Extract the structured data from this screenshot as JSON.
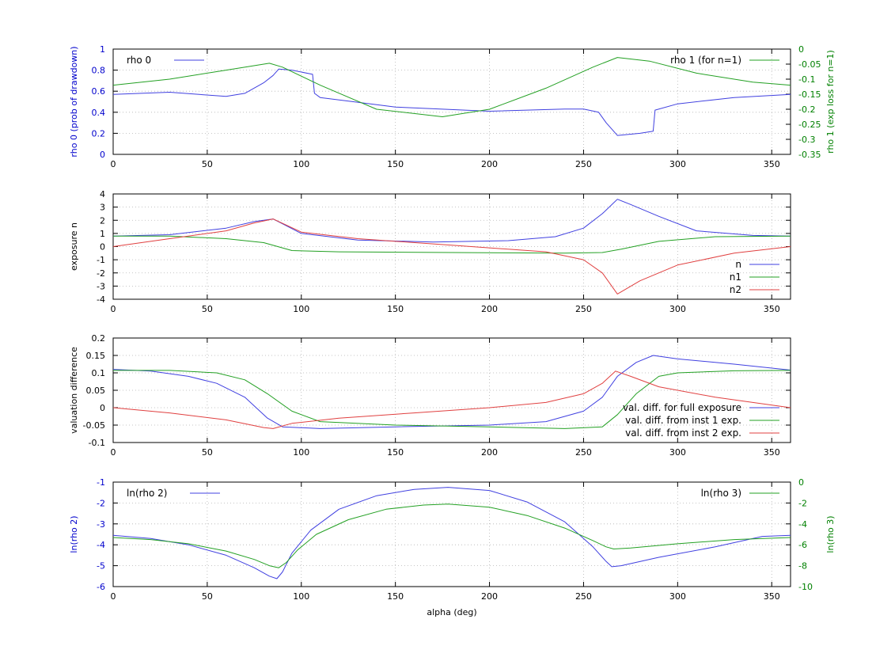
{
  "chart_data": [
    {
      "type": "line",
      "xlabel": "",
      "xlim": [
        0,
        360
      ],
      "xticks": [
        0,
        50,
        100,
        150,
        200,
        250,
        300,
        350
      ],
      "ylabel": "rho 0 (prob of drawdown)",
      "ylim": [
        0,
        1
      ],
      "yticks": [
        0,
        0.2,
        0.4,
        0.6,
        0.8,
        1
      ],
      "ytick_labels": [
        "0",
        "0.2",
        "0.4",
        "0.6",
        "0.8",
        "1"
      ],
      "y2label": "rho 1 (exp loss for n=1)",
      "y2lim": [
        -0.35,
        0
      ],
      "y2ticks": [
        0,
        -0.05,
        -0.1,
        -0.15,
        -0.2,
        -0.25,
        -0.3,
        -0.35
      ],
      "y2tick_labels": [
        "0",
        "-0.05",
        "-0.1",
        "-0.15",
        "-0.2",
        "-0.25",
        "-0.3",
        "-0.35"
      ],
      "ylabel_color": "#0000cc",
      "y2label_color": "#008000",
      "grid": true,
      "legend_position": "top-left and top-right",
      "series": [
        {
          "name": "rho 0",
          "axis": "left",
          "color": "#4040e0",
          "x": [
            0,
            30,
            60,
            70,
            80,
            85,
            88,
            95,
            106,
            107,
            110,
            150,
            200,
            240,
            250,
            258,
            262,
            268,
            280,
            287,
            288,
            300,
            330,
            360
          ],
          "y": [
            0.57,
            0.59,
            0.55,
            0.58,
            0.68,
            0.75,
            0.81,
            0.8,
            0.76,
            0.58,
            0.54,
            0.45,
            0.41,
            0.43,
            0.43,
            0.4,
            0.3,
            0.18,
            0.2,
            0.22,
            0.42,
            0.48,
            0.54,
            0.57
          ]
        },
        {
          "name": "rho 1 (for n=1)",
          "axis": "right",
          "color": "#23a023",
          "x": [
            0,
            30,
            60,
            83,
            90,
            110,
            140,
            175,
            200,
            230,
            255,
            268,
            285,
            310,
            340,
            360
          ],
          "y": [
            -0.12,
            -0.1,
            -0.07,
            -0.047,
            -0.06,
            -0.12,
            -0.2,
            -0.225,
            -0.2,
            -0.13,
            -0.06,
            -0.028,
            -0.04,
            -0.08,
            -0.11,
            -0.12
          ]
        }
      ]
    },
    {
      "type": "line",
      "xlabel": "",
      "xlim": [
        0,
        360
      ],
      "xticks": [
        0,
        50,
        100,
        150,
        200,
        250,
        300,
        350
      ],
      "ylabel": "exposure n",
      "ylim": [
        -4,
        4
      ],
      "yticks": [
        -4,
        -3,
        -2,
        -1,
        0,
        1,
        2,
        3,
        4
      ],
      "ytick_labels": [
        "-4",
        "-3",
        "-2",
        "-1",
        "0",
        "1",
        "2",
        "3",
        "4"
      ],
      "grid": true,
      "legend_position": "bottom-right",
      "series": [
        {
          "name": "n",
          "color": "#4040e0",
          "x": [
            0,
            30,
            60,
            75,
            85,
            100,
            130,
            170,
            210,
            235,
            250,
            260,
            268,
            275,
            290,
            310,
            340,
            360
          ],
          "y": [
            0.8,
            0.9,
            1.4,
            1.9,
            2.1,
            1.0,
            0.5,
            0.35,
            0.45,
            0.75,
            1.4,
            2.5,
            3.6,
            3.2,
            2.3,
            1.2,
            0.85,
            0.8
          ]
        },
        {
          "name": "n1",
          "color": "#23a023",
          "x": [
            0,
            30,
            60,
            80,
            95,
            120,
            180,
            240,
            260,
            270,
            290,
            320,
            360
          ],
          "y": [
            0.8,
            0.8,
            0.6,
            0.3,
            -0.3,
            -0.4,
            -0.45,
            -0.5,
            -0.45,
            -0.2,
            0.4,
            0.75,
            0.8
          ]
        },
        {
          "name": "n2",
          "color": "#e04040",
          "x": [
            0,
            30,
            60,
            75,
            85,
            100,
            130,
            180,
            230,
            250,
            260,
            268,
            280,
            300,
            330,
            360
          ],
          "y": [
            0,
            0.6,
            1.2,
            1.8,
            2.1,
            1.1,
            0.6,
            0.1,
            -0.4,
            -1.0,
            -2.0,
            -3.6,
            -2.6,
            -1.4,
            -0.5,
            0
          ]
        }
      ]
    },
    {
      "type": "line",
      "xlabel": "",
      "xlim": [
        0,
        360
      ],
      "xticks": [
        0,
        50,
        100,
        150,
        200,
        250,
        300,
        350
      ],
      "ylabel": "valuation difference",
      "ylim": [
        -0.1,
        0.2
      ],
      "yticks": [
        -0.1,
        -0.05,
        0,
        0.05,
        0.1,
        0.15,
        0.2
      ],
      "ytick_labels": [
        "-0.1",
        "-0.05",
        "0",
        "0.05",
        "0.1",
        "0.15",
        "0.2"
      ],
      "grid": true,
      "legend_position": "bottom-right",
      "series": [
        {
          "name": "val. diff. for full exposure",
          "color": "#4040e0",
          "x": [
            0,
            20,
            40,
            55,
            70,
            82,
            90,
            110,
            150,
            200,
            230,
            250,
            260,
            268,
            278,
            287,
            300,
            330,
            360
          ],
          "y": [
            0.11,
            0.105,
            0.09,
            0.07,
            0.03,
            -0.03,
            -0.055,
            -0.06,
            -0.055,
            -0.05,
            -0.04,
            -0.01,
            0.03,
            0.09,
            0.13,
            0.15,
            0.14,
            0.125,
            0.108
          ]
        },
        {
          "name": "val. diff. from inst 1 exp.",
          "color": "#23a023",
          "x": [
            0,
            30,
            55,
            70,
            82,
            95,
            110,
            150,
            200,
            240,
            260,
            268,
            278,
            290,
            300,
            330,
            360
          ],
          "y": [
            0.107,
            0.107,
            0.1,
            0.08,
            0.04,
            -0.01,
            -0.04,
            -0.05,
            -0.055,
            -0.06,
            -0.055,
            -0.02,
            0.04,
            0.09,
            0.1,
            0.106,
            0.107
          ]
        },
        {
          "name": "val. diff. from inst 2 exp.",
          "color": "#e04040",
          "x": [
            0,
            30,
            60,
            80,
            85,
            95,
            120,
            160,
            200,
            230,
            250,
            260,
            267,
            275,
            290,
            320,
            360
          ],
          "y": [
            0,
            -0.015,
            -0.035,
            -0.057,
            -0.06,
            -0.045,
            -0.03,
            -0.015,
            0,
            0.015,
            0.04,
            0.07,
            0.105,
            0.09,
            0.06,
            0.03,
            0
          ]
        }
      ]
    },
    {
      "type": "line",
      "xlabel": "alpha (deg)",
      "xlim": [
        0,
        360
      ],
      "xticks": [
        0,
        50,
        100,
        150,
        200,
        250,
        300,
        350
      ],
      "ylabel": "ln(rho 2)",
      "ylim": [
        -6,
        -1
      ],
      "yticks": [
        -6,
        -5,
        -4,
        -3,
        -2,
        -1
      ],
      "ytick_labels": [
        "-6",
        "-5",
        "-4",
        "-3",
        "-2",
        "-1"
      ],
      "y2label": "ln(rho 3)",
      "y2lim": [
        -10,
        0
      ],
      "y2ticks": [
        0,
        -2,
        -4,
        -6,
        -8,
        -10
      ],
      "y2tick_labels": [
        "0",
        "-2",
        "-4",
        "-6",
        "-8",
        "-10"
      ],
      "ylabel_color": "#0000cc",
      "y2label_color": "#008000",
      "grid": true,
      "legend_position": "top-left and top-right",
      "series": [
        {
          "name": "ln(rho 2)",
          "axis": "left",
          "color": "#4040e0",
          "x": [
            0,
            20,
            40,
            60,
            75,
            83,
            87,
            90,
            95,
            105,
            120,
            140,
            160,
            178,
            200,
            220,
            240,
            255,
            262,
            265,
            270,
            290,
            320,
            345,
            360
          ],
          "y": [
            -3.55,
            -3.7,
            -4.0,
            -4.5,
            -5.1,
            -5.5,
            -5.62,
            -5.3,
            -4.4,
            -3.3,
            -2.3,
            -1.65,
            -1.35,
            -1.25,
            -1.4,
            -1.95,
            -2.9,
            -4.1,
            -4.8,
            -5.05,
            -5.0,
            -4.6,
            -4.1,
            -3.6,
            -3.55
          ]
        },
        {
          "name": "ln(rho 3)",
          "axis": "right",
          "color": "#23a023",
          "x": [
            0,
            20,
            40,
            60,
            75,
            83,
            88,
            92,
            98,
            108,
            125,
            145,
            165,
            178,
            200,
            220,
            240,
            255,
            262,
            266,
            275,
            300,
            330,
            360
          ],
          "y": [
            -5.3,
            -5.5,
            -5.9,
            -6.6,
            -7.4,
            -8.0,
            -8.2,
            -7.7,
            -6.5,
            -5.0,
            -3.6,
            -2.6,
            -2.2,
            -2.1,
            -2.4,
            -3.2,
            -4.4,
            -5.6,
            -6.2,
            -6.4,
            -6.3,
            -5.9,
            -5.5,
            -5.3
          ]
        }
      ]
    }
  ]
}
